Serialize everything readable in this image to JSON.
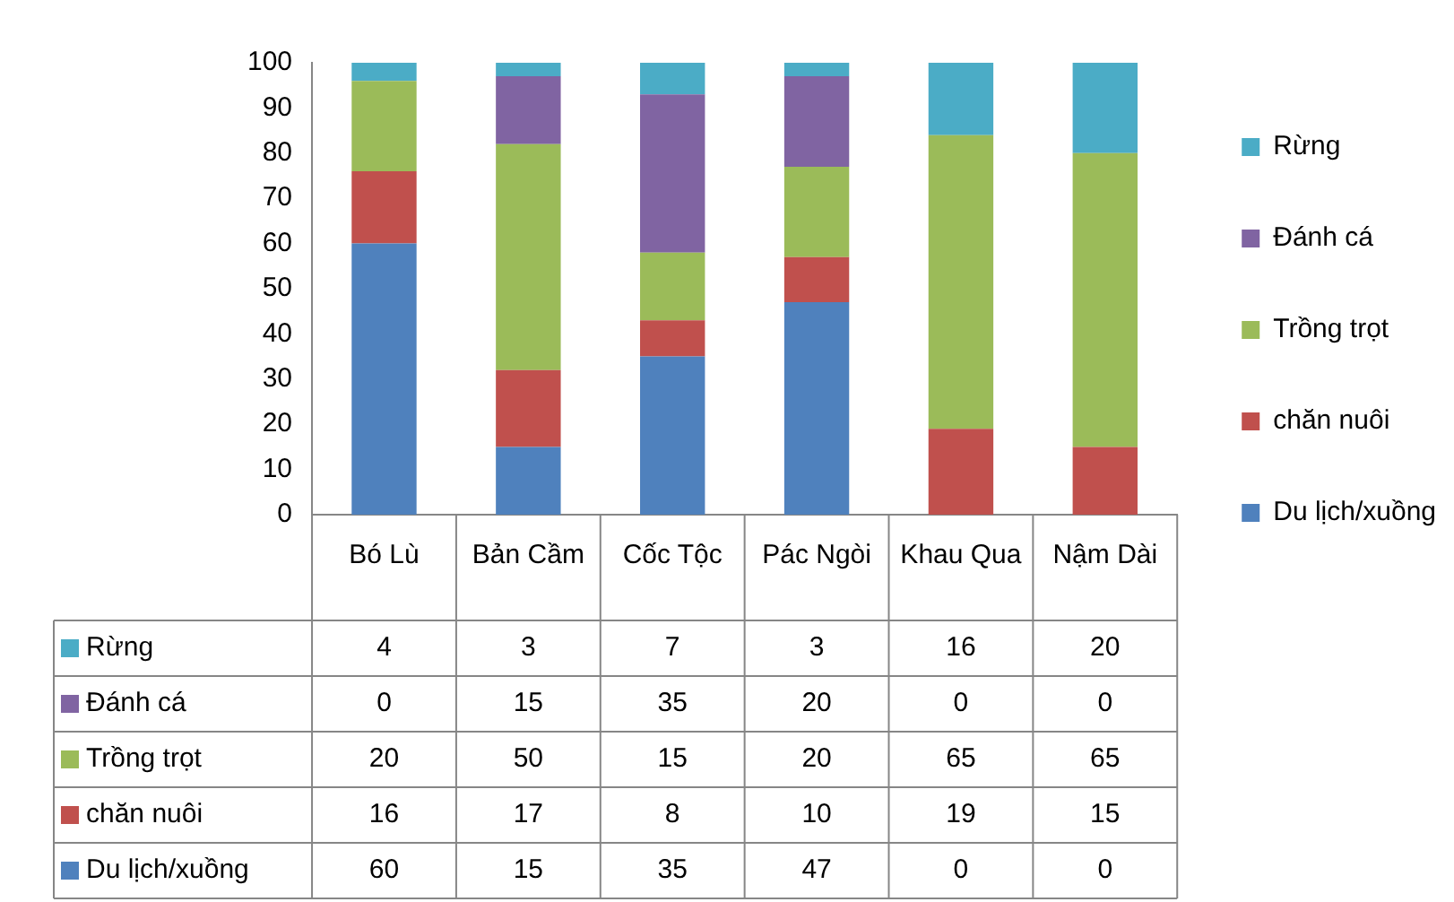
{
  "chart_data": {
    "type": "bar",
    "stacked": true,
    "categories": [
      "Bó Lù",
      "Bản Cầm",
      "Cốc Tộc",
      "Pác Ngòi",
      "Khau Qua",
      "Nậm Dài"
    ],
    "series": [
      {
        "name": "Du lịch/xuồng",
        "color": "#4f81bd",
        "values": [
          60,
          15,
          35,
          47,
          0,
          0
        ]
      },
      {
        "name": "chăn nuôi",
        "color": "#c0504d",
        "values": [
          16,
          17,
          8,
          10,
          19,
          15
        ]
      },
      {
        "name": "Trồng trọt",
        "color": "#9bbb59",
        "values": [
          20,
          50,
          15,
          20,
          65,
          65
        ]
      },
      {
        "name": "Đánh cá",
        "color": "#8064a2",
        "values": [
          0,
          15,
          35,
          20,
          0,
          0
        ]
      },
      {
        "name": "Rừng",
        "color": "#4bacc6",
        "values": [
          4,
          3,
          7,
          3,
          16,
          20
        ]
      }
    ],
    "ylim": [
      0,
      100
    ],
    "yticks": [
      0,
      10,
      20,
      30,
      40,
      50,
      60,
      70,
      80,
      90,
      100
    ],
    "grid": false,
    "legend": "right",
    "data_labels": true
  }
}
